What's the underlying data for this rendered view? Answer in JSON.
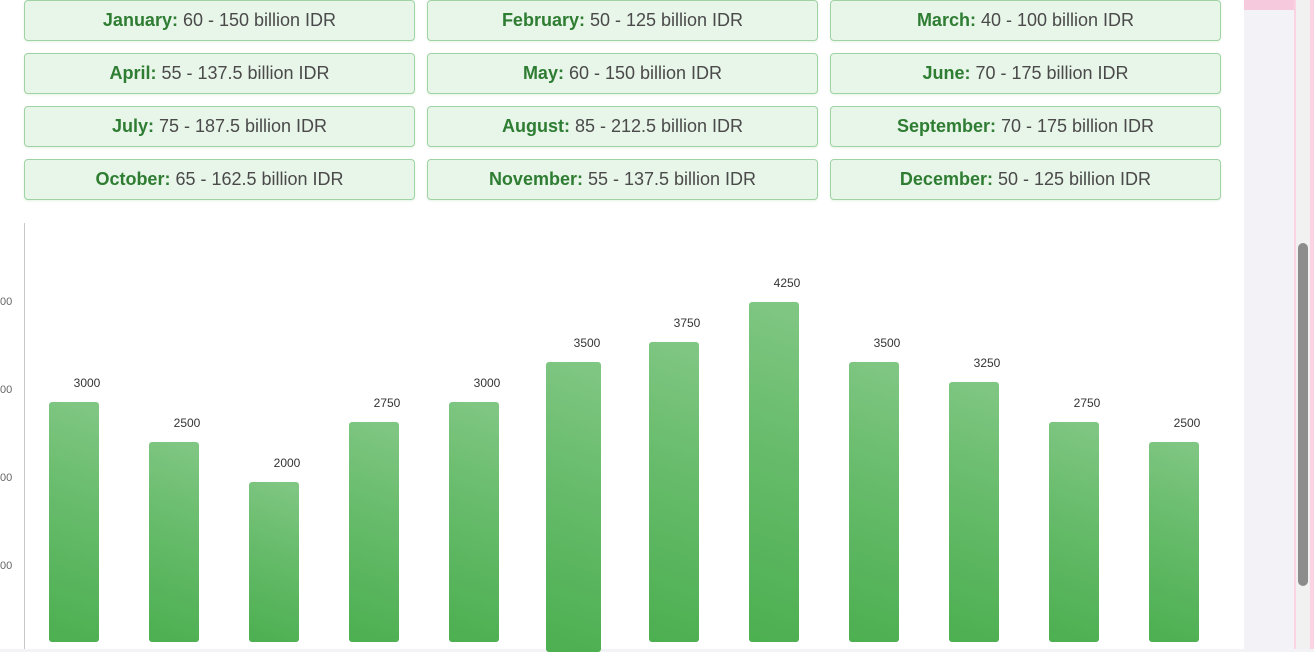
{
  "months": [
    {
      "name": "January:",
      "range": "60 - 150 billion IDR"
    },
    {
      "name": "February:",
      "range": "50 - 125 billion IDR"
    },
    {
      "name": "March:",
      "range": "40 - 100 billion IDR"
    },
    {
      "name": "April:",
      "range": "55 - 137.5 billion IDR"
    },
    {
      "name": "May:",
      "range": "60 - 150 billion IDR"
    },
    {
      "name": "June:",
      "range": "70 - 175 billion IDR"
    },
    {
      "name": "July:",
      "range": "75 - 187.5 billion IDR"
    },
    {
      "name": "August:",
      "range": "85 - 212.5 billion IDR"
    },
    {
      "name": "September:",
      "range": "70 - 175 billion IDR"
    },
    {
      "name": "October:",
      "range": "65 - 162.5 billion IDR"
    },
    {
      "name": "November:",
      "range": "55 - 137.5 billion IDR"
    },
    {
      "name": "December:",
      "range": "50 - 125 billion IDR"
    }
  ],
  "chart_data": {
    "type": "bar",
    "values": [
      3000,
      2500,
      2000,
      2750,
      3000,
      3500,
      3750,
      4250,
      3500,
      3250,
      2750,
      2500
    ],
    "value_labels": [
      "3000",
      "2500",
      "2000",
      "2750",
      "3000",
      "3500",
      "3750",
      "4250",
      "3500",
      "3250",
      "2750",
      "2500"
    ],
    "y_tick_labels_visible": [
      "00",
      "00",
      "00",
      "00"
    ],
    "bar_color": "#4caf50",
    "grid": false
  },
  "colors": {
    "card_bg": "#e8f5e9",
    "card_border": "#9fd3a3",
    "month_text": "#2e7d32"
  }
}
